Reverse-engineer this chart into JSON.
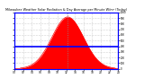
{
  "title": "Milwaukee Weather Solar Radiation & Day Average per Minute W/m² (Today)",
  "background_color": "#ffffff",
  "plot_bg_color": "#ffffff",
  "fill_color": "#ff0000",
  "line_color": "#ff0000",
  "avg_line_color": "#0000ff",
  "grid_color": "#aaaaaa",
  "xlim": [
    0,
    1440
  ],
  "ylim": [
    0,
    1000
  ],
  "peak_value": 920,
  "avg_value": 390,
  "peak_minute": 740,
  "bell_sigma": 220,
  "border_color": "#0000ff",
  "spine_color": "#aaaaaa",
  "tick_color": "#000000",
  "vline_color": "#888888"
}
